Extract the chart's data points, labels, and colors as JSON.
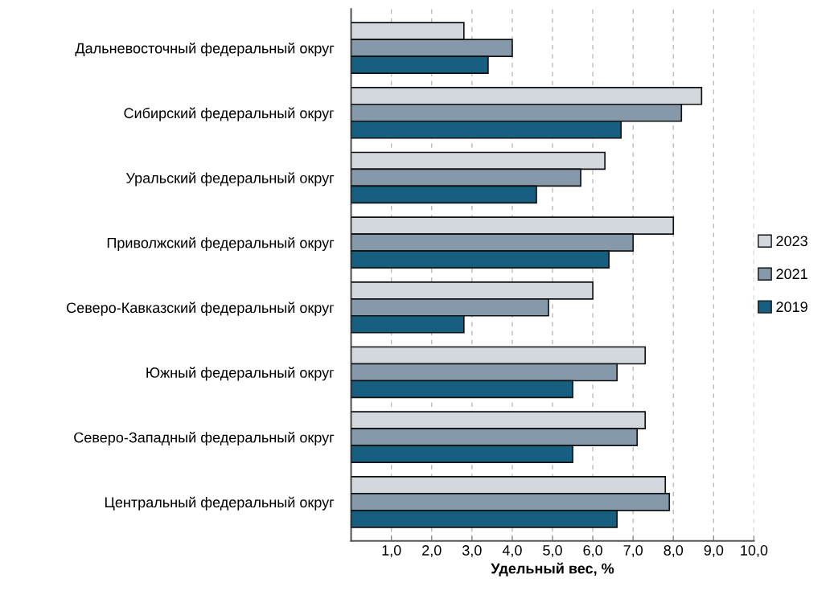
{
  "chart_data": {
    "type": "bar",
    "orientation": "horizontal",
    "xlabel": "Удельный вес, %",
    "categories": [
      "Дальневосточный федеральный округ",
      "Сибирский федеральный округ",
      "Уральский федеральный округ",
      "Приволжский федеральный округ",
      "Северо-Кавказский федеральный округ",
      "Южный федеральный округ",
      "Северо-Западный федеральный округ",
      "Центральный федеральный округ"
    ],
    "series": [
      {
        "name": "2023",
        "color": "#d3d8df",
        "values": [
          2.8,
          8.7,
          6.3,
          8.0,
          6.0,
          7.3,
          7.3,
          7.8
        ]
      },
      {
        "name": "2021",
        "color": "#8699aa",
        "values": [
          4.0,
          8.2,
          5.7,
          7.0,
          4.9,
          6.6,
          7.1,
          7.9
        ]
      },
      {
        "name": "2019",
        "color": "#165f80",
        "values": [
          3.4,
          6.7,
          4.6,
          6.4,
          2.8,
          5.5,
          5.5,
          6.6
        ]
      }
    ],
    "xlim": [
      0,
      10
    ],
    "xticks": [
      {
        "value": 1,
        "label": "1,0"
      },
      {
        "value": 2,
        "label": "2,0"
      },
      {
        "value": 3,
        "label": "3,0"
      },
      {
        "value": 4,
        "label": "4,0"
      },
      {
        "value": 5,
        "label": "5,0"
      },
      {
        "value": 6,
        "label": "6,0"
      },
      {
        "value": 7,
        "label": "7,0"
      },
      {
        "value": 8,
        "label": "8,0"
      },
      {
        "value": 9,
        "label": "9,0"
      },
      {
        "value": 10,
        "label": "10,0"
      }
    ],
    "grid": "x",
    "legend": "right"
  }
}
